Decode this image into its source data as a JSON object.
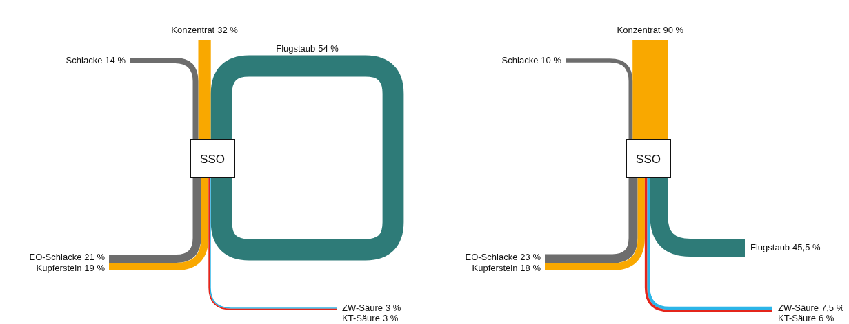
{
  "chart_data": [
    {
      "type": "other",
      "categories": [
        "Konzentrat",
        "Schlacke",
        "Flugstaub",
        "EO-Schlacke",
        "Kupferstein",
        "ZW-Säure",
        "KT-Säure"
      ],
      "colors": [
        "#f9a800",
        "#6d6d6d",
        "#2e7b78",
        "#6d6d6d",
        "#f9a800",
        "#2bb5e8",
        "#e4251b"
      ],
      "series": [
        {
          "values": [
            32,
            14,
            54,
            null,
            null,
            null,
            null
          ],
          "value_labels": [
            "32 %",
            "14 %",
            "54 %",
            null,
            null,
            null,
            null
          ]
        },
        {
          "values": [
            null,
            null,
            null,
            21,
            19,
            3,
            3
          ],
          "value_labels": [
            null,
            null,
            null,
            "21 %",
            "19 %",
            "3 %",
            "3 %"
          ]
        }
      ],
      "annotations": [
        "SSO"
      ]
    },
    {
      "type": "other",
      "categories": [
        "Konzentrat",
        "Schlacke",
        "EO-Schlacke",
        "Kupferstein",
        "ZW-Säure",
        "KT-Säure",
        "Flugstaub"
      ],
      "colors": [
        "#f9a800",
        "#6d6d6d",
        "#6d6d6d",
        "#f9a800",
        "#2bb5e8",
        "#e4251b",
        "#2e7b78"
      ],
      "series": [
        {
          "values": [
            90,
            10,
            null,
            null,
            null,
            null,
            null
          ],
          "value_labels": [
            "90 %",
            "10 %",
            null,
            null,
            null,
            null,
            null
          ]
        },
        {
          "values": [
            null,
            null,
            23,
            18,
            7.5,
            6,
            45.5
          ],
          "value_labels": [
            null,
            null,
            "23 %",
            "18 %",
            "7,5 %",
            "6 %",
            "45,5 %"
          ]
        }
      ],
      "annotations": [
        "SSO"
      ]
    }
  ]
}
